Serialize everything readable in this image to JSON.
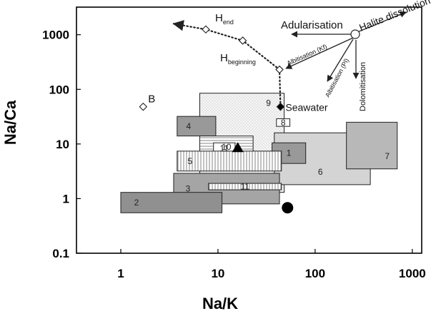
{
  "chart_data": {
    "type": "scatter",
    "xlabel": "Na/K",
    "ylabel": "Na/Ca",
    "x_scale": "log",
    "y_scale": "log",
    "xlim": [
      0.35,
      1250
    ],
    "ylim": [
      0.1,
      3200
    ],
    "x_ticks": [
      {
        "value": 1,
        "label": "1"
      },
      {
        "value": 10,
        "label": "10"
      },
      {
        "value": 100,
        "label": "100"
      },
      {
        "value": 1000,
        "label": "1000"
      }
    ],
    "y_ticks": [
      {
        "value": 0.1,
        "label": "0.1"
      },
      {
        "value": 1,
        "label": "1"
      },
      {
        "value": 10,
        "label": "10"
      },
      {
        "value": 100,
        "label": "100"
      },
      {
        "value": 1000,
        "label": "1000"
      }
    ],
    "fields": [
      {
        "label": "9",
        "x": [
          6.5,
          48
        ],
        "y": [
          1.3,
          85
        ],
        "fill": "dots"
      },
      {
        "label": "6",
        "x": [
          38,
          370
        ],
        "y": [
          1.8,
          16
        ],
        "fill": "#d4d4d4"
      },
      {
        "label": "7",
        "x": [
          210,
          700
        ],
        "y": [
          3.5,
          25
        ],
        "fill": "#b8b8b8"
      },
      {
        "label": "4",
        "x": [
          3.8,
          9.5
        ],
        "y": [
          14,
          32
        ],
        "fill": "#999999"
      },
      {
        "label": "3",
        "x": [
          3.5,
          43
        ],
        "y": [
          0.8,
          2.9
        ],
        "fill": "#a5a5a5"
      },
      {
        "label": "2",
        "x": [
          1.0,
          11
        ],
        "y": [
          0.55,
          1.3
        ],
        "fill": "#909090"
      },
      {
        "label": "1",
        "x": [
          36,
          80
        ],
        "y": [
          4.4,
          10.5
        ],
        "fill": "#999999"
      },
      {
        "label": "10",
        "x": [
          6.5,
          23
        ],
        "y": [
          5.5,
          14
        ],
        "fill": "hatch-h"
      },
      {
        "label": "11",
        "x": [
          9,
          15
        ],
        "y": [
          6.5,
          10.5
        ],
        "fill": "#ffffff"
      },
      {
        "label": "5",
        "x": [
          3.8,
          45
        ],
        "y": [
          3.2,
          7.4
        ],
        "fill": "hatch-v"
      },
      {
        "label": "11",
        "x": [
          8,
          45
        ],
        "y": [
          1.45,
          1.9
        ],
        "fill": "hatch-v"
      },
      {
        "label": "8",
        "x": [
          40,
          55
        ],
        "y": [
          21,
          29
        ],
        "fill": "#ffffff"
      }
    ],
    "points": [
      {
        "label": "B",
        "x": 1.7,
        "y": 48,
        "marker": "open-diamond"
      },
      {
        "label": "Seawater",
        "x": 44,
        "y": 48,
        "marker": "filled-diamond"
      },
      {
        "label": "",
        "x": 16,
        "y": 8.5,
        "marker": "filled-triangle"
      },
      {
        "label": "",
        "x": 52,
        "y": 0.68,
        "marker": "filled-circle"
      }
    ],
    "evaporation_path": {
      "points": [
        {
          "x": 7.5,
          "y": 1250
        },
        {
          "x": 18,
          "y": 780
        },
        {
          "x": 43,
          "y": 230
        }
      ],
      "end_label": "H",
      "end_sub": "end",
      "beginning_label": "H",
      "beginning_sub": "beginning"
    },
    "processes": [
      {
        "label": "Adularisation"
      },
      {
        "label": "Halite dissolution"
      },
      {
        "label": "Albitisation (Kf)"
      },
      {
        "label": "Albitisation (Pl)"
      },
      {
        "label": "Dolomitisation"
      }
    ]
  }
}
